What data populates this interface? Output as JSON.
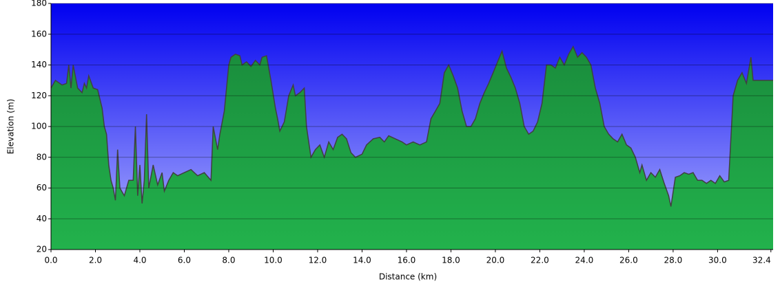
{
  "chart_data": {
    "type": "area",
    "xlabel": "Distance   (km)",
    "ylabel": "Elevation (m)",
    "color": "#1fa044",
    "line_color": "#404040",
    "grid": true,
    "xlim": [
      0,
      32.5
    ],
    "ylim": [
      20,
      180
    ],
    "xticks": [
      {
        "value": 0,
        "label": "0.0"
      },
      {
        "value": 2,
        "label": "2.0"
      },
      {
        "value": 4,
        "label": "4.0"
      },
      {
        "value": 6,
        "label": "6.0"
      },
      {
        "value": 8,
        "label": "8.0"
      },
      {
        "value": 10,
        "label": "10.0"
      },
      {
        "value": 12,
        "label": "12.0"
      },
      {
        "value": 14,
        "label": "14.0"
      },
      {
        "value": 16,
        "label": "16.0"
      },
      {
        "value": 18,
        "label": "18.0"
      },
      {
        "value": 20,
        "label": "20.0"
      },
      {
        "value": 22,
        "label": "22.0"
      },
      {
        "value": 24,
        "label": "24.0"
      },
      {
        "value": 26,
        "label": "26.0"
      },
      {
        "value": 28,
        "label": "28.0"
      },
      {
        "value": 30,
        "label": "30.0"
      },
      32.4
    ],
    "yticks": [
      20,
      40,
      60,
      80,
      100,
      120,
      140,
      160,
      180
    ],
    "x": [
      0,
      0.2,
      0.5,
      0.7,
      0.8,
      0.9,
      1.0,
      1.2,
      1.4,
      1.5,
      1.6,
      1.7,
      1.9,
      2.1,
      2.2,
      2.3,
      2.4,
      2.5,
      2.6,
      2.7,
      2.8,
      2.9,
      3.0,
      3.1,
      3.3,
      3.5,
      3.7,
      3.8,
      3.9,
      4.0,
      4.1,
      4.2,
      4.3,
      4.4,
      4.6,
      4.8,
      5.0,
      5.1,
      5.3,
      5.5,
      5.7,
      6.0,
      6.3,
      6.6,
      6.9,
      7.2,
      7.3,
      7.5,
      7.6,
      7.8,
      8.0,
      8.1,
      8.3,
      8.5,
      8.6,
      8.8,
      9.0,
      9.2,
      9.4,
      9.5,
      9.7,
      9.9,
      10.1,
      10.2,
      10.3,
      10.5,
      10.7,
      10.9,
      11.0,
      11.2,
      11.4,
      11.5,
      11.7,
      11.9,
      12.1,
      12.3,
      12.5,
      12.7,
      12.9,
      13.1,
      13.3,
      13.5,
      13.7,
      14.0,
      14.2,
      14.5,
      14.8,
      15.0,
      15.2,
      15.5,
      15.8,
      16.0,
      16.3,
      16.6,
      16.9,
      17.1,
      17.3,
      17.5,
      17.7,
      17.9,
      18.1,
      18.3,
      18.5,
      18.7,
      18.9,
      19.1,
      19.3,
      19.5,
      19.7,
      19.9,
      20.1,
      20.3,
      20.5,
      20.7,
      20.9,
      21.1,
      21.3,
      21.5,
      21.7,
      21.9,
      22.1,
      22.3,
      22.5,
      22.7,
      22.9,
      23.1,
      23.3,
      23.5,
      23.7,
      23.9,
      24.1,
      24.3,
      24.5,
      24.7,
      24.9,
      25.1,
      25.3,
      25.5,
      25.7,
      25.9,
      26.1,
      26.3,
      26.5,
      26.6,
      26.8,
      27.0,
      27.2,
      27.4,
      27.6,
      27.8,
      27.9,
      28.1,
      28.3,
      28.5,
      28.7,
      28.9,
      29.1,
      29.3,
      29.5,
      29.7,
      29.9,
      30.1,
      30.3,
      30.5,
      30.7,
      30.9,
      31.1,
      31.3,
      31.5,
      31.6,
      31.8,
      32.5
    ],
    "values": [
      125,
      130,
      127,
      128,
      140,
      125,
      140,
      125,
      122,
      128,
      125,
      133,
      125,
      124,
      118,
      112,
      100,
      95,
      75,
      65,
      60,
      52,
      85,
      60,
      55,
      65,
      65,
      100,
      55,
      75,
      50,
      65,
      108,
      60,
      75,
      62,
      70,
      58,
      65,
      70,
      68,
      70,
      72,
      68,
      70,
      65,
      100,
      85,
      95,
      110,
      140,
      145,
      147,
      146,
      140,
      142,
      139,
      143,
      140,
      145,
      146,
      130,
      112,
      105,
      97,
      103,
      120,
      127,
      120,
      122,
      125,
      100,
      80,
      85,
      88,
      80,
      90,
      85,
      93,
      95,
      92,
      83,
      80,
      82,
      88,
      92,
      93,
      90,
      94,
      92,
      90,
      88,
      90,
      88,
      90,
      105,
      110,
      115,
      135,
      140,
      133,
      125,
      110,
      100,
      100,
      105,
      115,
      122,
      128,
      135,
      142,
      149,
      138,
      132,
      125,
      115,
      100,
      95,
      97,
      103,
      115,
      140,
      140,
      138,
      145,
      140,
      147,
      152,
      145,
      148,
      145,
      140,
      125,
      115,
      100,
      95,
      92,
      90,
      95,
      88,
      86,
      80,
      70,
      75,
      65,
      70,
      67,
      72,
      63,
      55,
      48,
      67,
      68,
      70,
      69,
      70,
      65,
      65,
      63,
      65,
      63,
      68,
      64,
      65,
      120,
      130,
      135,
      128,
      145,
      130,
      130,
      130
    ]
  }
}
